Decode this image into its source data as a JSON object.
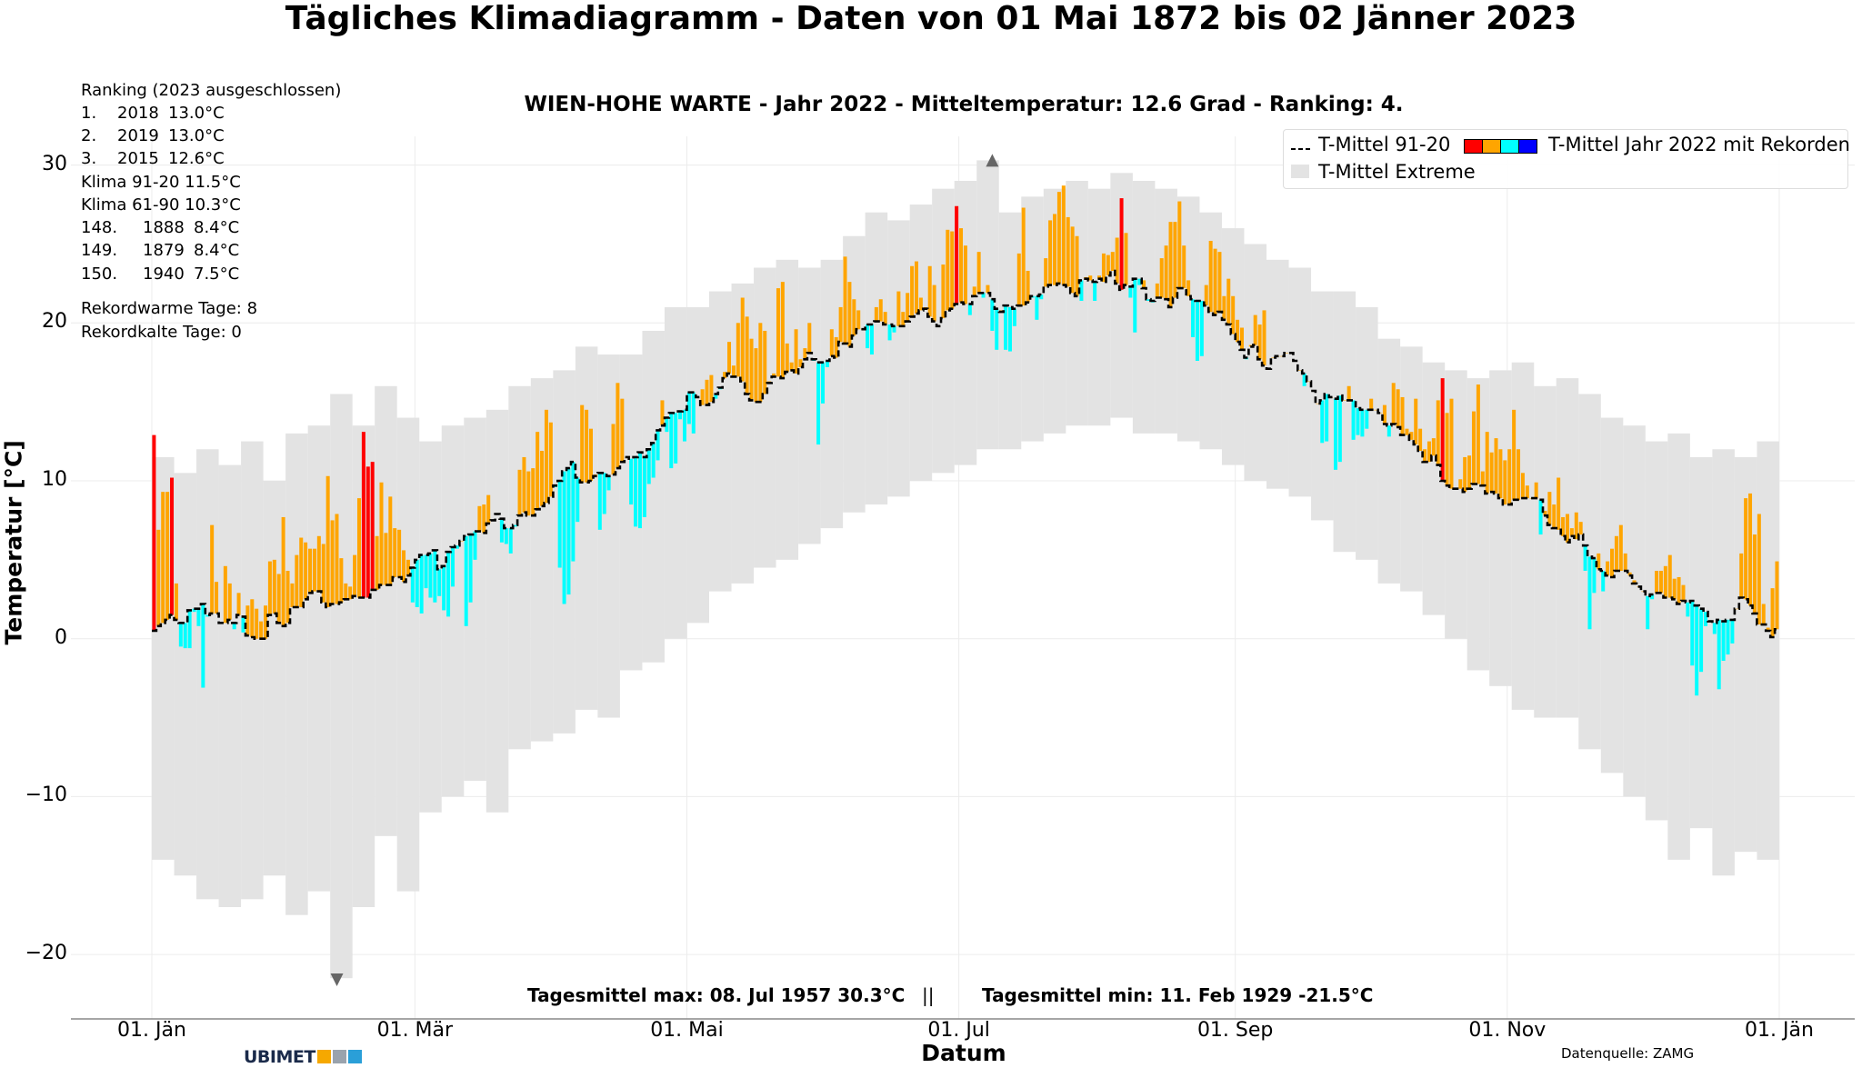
{
  "title": "Tägliches Klimadiagramm - Daten von 01 Mai 1872 bis 02 Jänner 2023",
  "subtitle": "WIEN-HOHE WARTE - Jahr 2022 - Mitteltemperatur: 12.6 Grad - Ranking: 4.",
  "ranking": {
    "heading": "Ranking (2023 ausgeschlossen)",
    "top": [
      {
        "rank": "1.",
        "year": "2018",
        "temp": "13.0°C"
      },
      {
        "rank": "2.",
        "year": "2019",
        "temp": "13.0°C"
      },
      {
        "rank": "3.",
        "year": "2015",
        "temp": "12.6°C"
      }
    ],
    "klima": [
      "Klima 91-20 11.5°C",
      "Klima 61-90 10.3°C"
    ],
    "bottom": [
      {
        "rank": "148.",
        "year": "1888",
        "temp": "8.4°C"
      },
      {
        "rank": "149.",
        "year": "1879",
        "temp": "8.4°C"
      },
      {
        "rank": "150.",
        "year": "1940",
        "temp": "7.5°C"
      }
    ],
    "record_warm": "Rekordwarme Tage: 8",
    "record_cold": "Rekordkalte Tage: 0"
  },
  "legend": {
    "clim_label": "T-Mittel 91-20",
    "year_label": "T-Mittel Jahr 2022 mit Rekorden",
    "extreme_label": "T-Mittel Extreme",
    "placement": "top-right"
  },
  "stats": {
    "max": "Tagesmittel max: 08. Jul 1957 30.3°C",
    "sep": "||",
    "min": "Tagesmittel min: 11. Feb 1929 -21.5°C"
  },
  "footer": {
    "logo": "UBIMET",
    "source": "Datenquelle: ZAMG"
  },
  "colors": {
    "record_warm": "#ff0000",
    "above": "#ffa500",
    "below": "#00ffff",
    "record_cold": "#0000ff",
    "extremes": "#e3e3e3",
    "climate_line": "#000000"
  },
  "chart_data": {
    "type": "bar",
    "title": "WIEN-HOHE WARTE - Jahr 2022 - Mitteltemperatur: 12.6 Grad - Ranking: 4.",
    "xlabel": "Datum",
    "ylabel": "Temperatur [°C]",
    "ylim": [
      -24,
      33
    ],
    "xlim": [
      "01. Jän 2022",
      "01. Jän 2023"
    ],
    "grid": true,
    "yticks": [
      -20,
      -10,
      0,
      10,
      20,
      30
    ],
    "xticks": [
      {
        "label": "01. Jän",
        "month": "Jän",
        "day": 1
      },
      {
        "label": "01. Mär",
        "month": "Mär",
        "day": 1
      },
      {
        "label": "01. Mai",
        "month": "Mai",
        "day": 1
      },
      {
        "label": "01. Jul",
        "month": "Jul",
        "day": 1
      },
      {
        "label": "01. Sep",
        "month": "Sep",
        "day": 1
      },
      {
        "label": "01. Nov",
        "month": "Nov",
        "day": 1
      },
      {
        "label": "01. Jän",
        "month": "Jän+",
        "day": 1
      }
    ],
    "months": [
      "Jän",
      "Feb",
      "Mär",
      "Apr",
      "Mai",
      "Jun",
      "Jul",
      "Aug",
      "Sep",
      "Okt",
      "Nov",
      "Dez"
    ],
    "t_mittel_2022": {
      "Jän": [
        12.9,
        6.9,
        9.3,
        9.3,
        10.2,
        3.5,
        -0.5,
        -0.6,
        -0.6,
        1.7,
        0.8,
        -3.1,
        1.4,
        7.2,
        3.6,
        1.0,
        4.6,
        3.5,
        0.6,
        2.9,
        0.4,
        2.1,
        2.5,
        1.9,
        1.1,
        2.1,
        4.9,
        5.0,
        4.1,
        7.7,
        4.3
      ],
      "Feb": [
        3.5,
        5.3,
        6.4,
        6.1,
        5.7,
        5.7,
        6.5,
        6.0,
        10.3,
        7.5,
        7.9,
        5.1,
        3.5,
        3.3,
        5.3,
        8.9,
        13.1,
        10.9,
        11.2,
        6.5,
        9.9,
        6.7,
        9.0,
        7.0,
        6.9,
        5.6,
        5.0,
        2.3
      ],
      "Mär": [
        2.0,
        1.6,
        3.2,
        2.6,
        2.3,
        2.7,
        1.8,
        1.4,
        3.3,
        5.7,
        6.2,
        0.8,
        2.3,
        5.0,
        8.4,
        8.5,
        9.1,
        7.5,
        7.9,
        6.1,
        6.0,
        5.4,
        7.1,
        10.7,
        11.5,
        10.6,
        10.8,
        13.1,
        11.9,
        14.5,
        13.7
      ],
      "Apr": [
        9.6,
        4.5,
        2.2,
        2.8,
        4.9,
        7.4,
        14.8,
        14.5,
        13.3,
        10.4,
        6.9,
        7.9,
        9.4,
        13.6,
        16.2,
        15.2,
        11.5,
        8.5,
        7.1,
        7.0,
        7.7,
        9.8,
        10.2,
        11.3,
        15.1,
        13.1,
        10.8,
        11.1,
        13.9,
        12.5
      ],
      "Mai": [
        13.6,
        13.0,
        15.3,
        15.8,
        16.4,
        16.7,
        15.2,
        15.8,
        16.9,
        18.8,
        17.3,
        20.0,
        21.6,
        20.4,
        19.0,
        18.4,
        20.0,
        19.5,
        16.3,
        16.8,
        22.2,
        22.6,
        18.7,
        17.5,
        19.6,
        17.7,
        18.4,
        20.0,
        17.6,
        12.3,
        14.9
      ],
      "Jun": [
        17.2,
        19.6,
        19.1,
        21.0,
        24.2,
        22.6,
        21.5,
        20.8,
        19.6,
        18.4,
        18.0,
        21.0,
        21.5,
        20.7,
        18.9,
        19.4,
        22.0,
        20.7,
        21.9,
        23.6,
        23.9,
        21.6,
        21.0,
        23.6,
        22.4,
        19.8,
        23.7,
        25.9,
        25.8,
        27.4
      ],
      "Jul": [
        26.0,
        24.9,
        20.5,
        22.3,
        24.5,
        21.6,
        22.4,
        19.5,
        18.3,
        20.8,
        18.3,
        18.2,
        19.8,
        24.4,
        27.3,
        23.3,
        21.6,
        20.2,
        21.5,
        24.1,
        26.5,
        26.9,
        28.3,
        28.7,
        26.7,
        26.1,
        25.5,
        21.4,
        22.9,
        23.0,
        21.4
      ],
      "Aug": [
        23.0,
        24.4,
        24.3,
        24.5,
        25.4,
        27.9,
        25.7,
        21.6,
        19.4,
        22.4,
        22.7,
        21.4,
        21.3,
        22.5,
        24.1,
        24.9,
        26.4,
        26.4,
        27.7,
        24.9,
        22.7,
        19.1,
        17.6,
        17.9,
        22.4,
        25.2,
        24.7,
        24.5,
        21.7,
        22.8,
        21.7
      ],
      "Sep": [
        20.2,
        19.7,
        17.7,
        18.6,
        20.5,
        19.9,
        20.8,
        17.1,
        17.8,
        17.9,
        17.9,
        18.1,
        18.1,
        17.6,
        17.0,
        16.0,
        16.3,
        15.7,
        14.9,
        12.4,
        12.5,
        15.3,
        10.7,
        11.2,
        15.1,
        16.0,
        12.6,
        12.9,
        12.8,
        13.3
      ],
      "Okt": [
        15.2,
        14.5,
        14.3,
        14.8,
        12.8,
        16.2,
        15.8,
        15.3,
        13.3,
        13.1,
        15.2,
        13.3,
        12.0,
        12.5,
        12.7,
        15.1,
        16.5,
        14.3,
        15.2,
        9.5,
        10.1,
        11.5,
        11.6,
        14.4,
        16.1,
        10.6,
        13.1,
        11.8,
        12.7,
        12.0,
        11.3
      ],
      "Nov": [
        12.0,
        14.5,
        12.0,
        10.5,
        9.7,
        8.9,
        9.9,
        6.6,
        8.1,
        9.3,
        8.5,
        10.2,
        7.7,
        7.9,
        7.0,
        8.0,
        7.4,
        4.3,
        0.6,
        2.9,
        5.4,
        3.0,
        4.9,
        5.7,
        6.5,
        7.2,
        5.4,
        4.2,
        3.7,
        3.3
      ],
      "Dez": [
        3.0,
        0.6,
        2.5,
        4.3,
        4.3,
        4.6,
        5.3,
        3.8,
        3.9,
        3.4,
        1.4,
        -1.7,
        -3.6,
        -2.1,
        0.8,
        1.1,
        0.3,
        -3.2,
        -1.4,
        -1.0,
        -0.3,
        1.9,
        5.4,
        8.9,
        9.2,
        6.6,
        7.9,
        2.2,
        0.7,
        3.2,
        4.9
      ]
    },
    "t_mittel_91_20": {
      "Jän": [
        0.5,
        0.8,
        1.0,
        1.2,
        1.5,
        1.2,
        1.0,
        1.0,
        1.8,
        1.9,
        1.9,
        2.2,
        1.5,
        1.6,
        1.6,
        1.0,
        1.0,
        1.2,
        1.0,
        1.5,
        1.4,
        0.2,
        0.1,
        0.0,
        0.0,
        0.0,
        1.5,
        1.6,
        1.0,
        0.8,
        1.0
      ],
      "Feb": [
        2.0,
        2.0,
        2.0,
        2.5,
        2.9,
        3.0,
        3.0,
        2.3,
        2.0,
        2.2,
        2.2,
        2.3,
        2.5,
        2.5,
        2.7,
        2.6,
        2.6,
        2.6,
        3.1,
        3.1,
        3.4,
        3.4,
        3.4,
        3.9,
        3.9,
        3.6,
        4.0,
        4.5
      ],
      "Mär": [
        5.0,
        5.3,
        5.3,
        5.4,
        5.6,
        4.4,
        4.6,
        5.5,
        5.8,
        5.9,
        6.2,
        6.5,
        6.6,
        6.8,
        6.8,
        6.7,
        7.3,
        7.5,
        7.9,
        7.6,
        7.0,
        7.0,
        7.2,
        7.8,
        8.0,
        7.8,
        7.8,
        8.2,
        8.4,
        8.6,
        9.0
      ],
      "Apr": [
        9.7,
        10.0,
        10.6,
        10.8,
        11.2,
        10.2,
        9.9,
        9.9,
        10.0,
        10.3,
        10.5,
        10.5,
        10.3,
        10.4,
        10.8,
        11.2,
        11.5,
        11.4,
        11.5,
        11.8,
        11.5,
        12.0,
        12.4,
        13.2,
        13.5,
        14.0,
        14.3,
        14.3,
        14.4,
        14.5
      ],
      "Mai": [
        15.6,
        15.6,
        15.3,
        14.8,
        14.8,
        15.0,
        15.5,
        15.9,
        16.5,
        16.8,
        16.6,
        16.6,
        16.3,
        15.5,
        15.1,
        15.0,
        15.0,
        15.5,
        16.2,
        16.6,
        16.6,
        16.5,
        16.9,
        17.0,
        16.8,
        17.2,
        17.7,
        18.1,
        17.7,
        17.5,
        17.5
      ],
      "Jun": [
        17.6,
        17.9,
        17.8,
        18.8,
        18.7,
        18.5,
        19.2,
        19.6,
        19.6,
        19.9,
        19.9,
        20.1,
        20.1,
        19.9,
        19.9,
        19.8,
        19.8,
        19.8,
        20.1,
        20.4,
        20.6,
        20.8,
        20.9,
        20.4,
        20.1,
        19.8,
        20.3,
        20.8,
        20.9,
        21.2
      ],
      "Jul": [
        21.3,
        21.2,
        21.2,
        21.7,
        21.9,
        21.9,
        21.9,
        21.5,
        20.9,
        20.7,
        21.1,
        21.0,
        20.9,
        21.1,
        21.1,
        21.3,
        21.7,
        21.7,
        21.8,
        22.3,
        22.4,
        22.4,
        22.5,
        22.4,
        22.3,
        21.9,
        21.7,
        22.7,
        22.8,
        22.7,
        22.6
      ],
      "Aug": [
        22.8,
        22.6,
        23.0,
        23.3,
        22.5,
        22.1,
        22.4,
        22.3,
        22.8,
        22.8,
        22.2,
        21.5,
        21.4,
        21.6,
        21.6,
        21.5,
        21.0,
        21.6,
        22.2,
        22.2,
        21.7,
        21.5,
        21.4,
        21.4,
        21.1,
        20.7,
        20.5,
        20.7,
        20.2,
        19.9,
        19.3
      ],
      "Sep": [
        18.8,
        18.3,
        17.8,
        18.5,
        18.6,
        17.7,
        17.3,
        17.1,
        17.8,
        17.9,
        17.9,
        18.1,
        18.1,
        17.6,
        17.0,
        16.8,
        16.3,
        15.7,
        14.9,
        15.1,
        15.5,
        15.3,
        15.2,
        15.4,
        15.1,
        15.1,
        15.1,
        14.6,
        14.5,
        14.5
      ],
      "Okt": [
        14.5,
        14.5,
        14.3,
        13.6,
        13.5,
        13.6,
        13.4,
        12.9,
        12.9,
        12.6,
        12.3,
        11.9,
        11.2,
        11.2,
        11.6,
        11.0,
        10.0,
        9.7,
        9.5,
        9.5,
        9.5,
        9.3,
        9.5,
        9.8,
        9.8,
        9.7,
        9.2,
        9.3,
        9.2,
        8.9,
        8.5
      ],
      "Nov": [
        8.5,
        8.8,
        8.8,
        8.9,
        8.9,
        8.9,
        8.9,
        8.8,
        7.8,
        7.2,
        7.0,
        6.9,
        6.5,
        6.1,
        6.5,
        6.3,
        6.6,
        5.9,
        5.2,
        5.1,
        4.4,
        4.3,
        4.0,
        3.9,
        4.3,
        4.3,
        4.3,
        4.0,
        3.5,
        3.3
      ],
      "Dez": [
        3.0,
        2.7,
        2.8,
        2.9,
        2.9,
        2.6,
        2.6,
        2.5,
        2.2,
        2.4,
        2.3,
        2.4,
        2.1,
        1.9,
        1.7,
        1.1,
        1.0,
        1.2,
        1.1,
        1.2,
        1.2,
        1.9,
        2.6,
        2.5,
        2.1,
        1.6,
        0.9,
        0.9,
        0.5,
        0.1,
        0.6
      ]
    },
    "record_warm_days": [
      {
        "month": "Jän",
        "day": 1
      },
      {
        "month": "Jän",
        "day": 5
      },
      {
        "month": "Feb",
        "day": 17
      },
      {
        "month": "Feb",
        "day": 18
      },
      {
        "month": "Feb",
        "day": 19
      },
      {
        "month": "Jun",
        "day": 30
      },
      {
        "month": "Aug",
        "day": 6
      },
      {
        "month": "Okt",
        "day": 17
      }
    ],
    "record_cold_days": [],
    "t_mittel_extreme": {
      "columns": [
        "day",
        "max",
        "min"
      ],
      "Jän": [
        [
          1,
          11.5,
          -14
        ],
        [
          6,
          10.5,
          -15
        ],
        [
          11,
          12,
          -16.5
        ],
        [
          16,
          11,
          -17
        ],
        [
          21,
          12.5,
          -16.5
        ],
        [
          26,
          10,
          -15
        ],
        [
          31,
          13,
          -17.5
        ]
      ],
      "Feb": [
        [
          5,
          13.5,
          -16
        ],
        [
          10,
          15.5,
          -21.5
        ],
        [
          15,
          13.5,
          -17
        ],
        [
          20,
          16,
          -12.5
        ],
        [
          25,
          14,
          -16
        ]
      ],
      "Mär": [
        [
          2,
          12.5,
          -11
        ],
        [
          7,
          13.5,
          -10
        ],
        [
          12,
          14,
          -9
        ],
        [
          17,
          14.5,
          -11
        ],
        [
          22,
          16,
          -7
        ],
        [
          27,
          16.5,
          -6.5
        ]
      ],
      "Apr": [
        [
          1,
          17,
          -6
        ],
        [
          6,
          18.5,
          -4.5
        ],
        [
          11,
          18,
          -5
        ],
        [
          16,
          18,
          -2
        ],
        [
          21,
          19.5,
          -1.5
        ],
        [
          26,
          21,
          0
        ]
      ],
      "Mai": [
        [
          1,
          21,
          1
        ],
        [
          6,
          22,
          3
        ],
        [
          11,
          22.5,
          3.5
        ],
        [
          16,
          23.5,
          4.5
        ],
        [
          21,
          24,
          5
        ],
        [
          26,
          23.5,
          6
        ],
        [
          31,
          24,
          7
        ]
      ],
      "Jun": [
        [
          5,
          25.5,
          8
        ],
        [
          10,
          27,
          8.5
        ],
        [
          15,
          26.5,
          9
        ],
        [
          20,
          27.5,
          10
        ],
        [
          25,
          28.5,
          10.5
        ],
        [
          30,
          29,
          11
        ]
      ],
      "Jul": [
        [
          5,
          30.3,
          12
        ],
        [
          10,
          27,
          12
        ],
        [
          15,
          28,
          12.5
        ],
        [
          20,
          28.5,
          13
        ],
        [
          25,
          29,
          13.5
        ],
        [
          30,
          28.5,
          13.5
        ]
      ],
      "Aug": [
        [
          4,
          29.5,
          14
        ],
        [
          9,
          29,
          13
        ],
        [
          14,
          28.5,
          13
        ],
        [
          19,
          28,
          12.5
        ],
        [
          24,
          27,
          12
        ],
        [
          29,
          26,
          11
        ]
      ],
      "Sep": [
        [
          3,
          25,
          10
        ],
        [
          8,
          24,
          9.5
        ],
        [
          13,
          23.5,
          9
        ],
        [
          18,
          22,
          7.5
        ],
        [
          23,
          22,
          5.5
        ],
        [
          28,
          21,
          5
        ]
      ],
      "Okt": [
        [
          3,
          19,
          3.5
        ],
        [
          8,
          18.5,
          3
        ],
        [
          13,
          17.5,
          1.5
        ],
        [
          18,
          17,
          0
        ],
        [
          23,
          16.5,
          -2
        ],
        [
          28,
          17,
          -3
        ]
      ],
      "Nov": [
        [
          2,
          17.5,
          -4.5
        ],
        [
          7,
          16,
          -5
        ],
        [
          12,
          16.5,
          -5
        ],
        [
          17,
          15.5,
          -7
        ],
        [
          22,
          14,
          -8.5
        ],
        [
          27,
          13.5,
          -10
        ]
      ],
      "Dez": [
        [
          2,
          12.5,
          -11.5
        ],
        [
          7,
          13,
          -14
        ],
        [
          12,
          11.5,
          -12
        ],
        [
          17,
          12,
          -15
        ],
        [
          22,
          11.5,
          -13.5
        ],
        [
          27,
          12.5,
          -14
        ]
      ]
    },
    "annotations": [
      {
        "marker": "triangle-up",
        "month": "Jul",
        "day": 8,
        "value": 30.3
      },
      {
        "marker": "triangle-down",
        "month": "Feb",
        "day": 11,
        "value": -21.5
      }
    ]
  }
}
